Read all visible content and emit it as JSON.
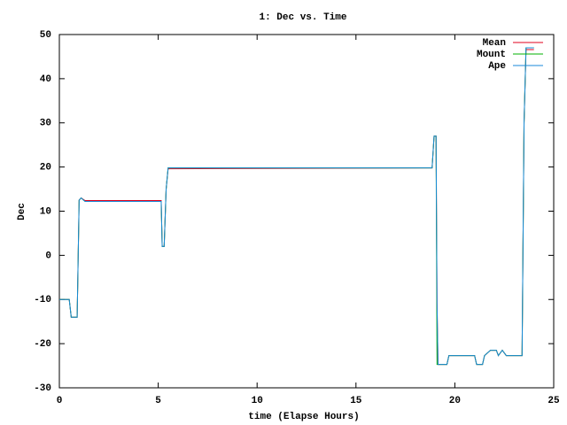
{
  "chart_data": {
    "type": "line",
    "title": "1: Dec vs. Time",
    "xlabel": "time (Elapse Hours)",
    "ylabel": "Dec",
    "x": [
      0,
      0.5,
      0.6,
      0.9,
      1.0,
      1.1,
      1.3,
      5.15,
      5.2,
      5.3,
      5.4,
      5.5,
      18.85,
      18.95,
      19.05,
      19.1,
      19.15,
      19.6,
      19.7,
      21.0,
      21.1,
      21.4,
      21.5,
      21.8,
      22.1,
      22.2,
      22.4,
      22.6,
      23.4,
      23.5,
      23.6,
      24.0
    ],
    "series": [
      {
        "name": "Mean",
        "color": "#e0001c",
        "values": [
          -10,
          -10,
          -14,
          -14,
          12.5,
          13,
          12.4,
          12.4,
          2,
          2,
          15,
          19.6,
          19.8,
          27,
          27,
          -11,
          -24.7,
          -24.7,
          -22.7,
          -22.7,
          -24.7,
          -24.7,
          -22.7,
          -21.5,
          -21.5,
          -22.7,
          -21.5,
          -22.7,
          -22.7,
          30,
          46.6,
          46.6
        ]
      },
      {
        "name": "Mount",
        "color": "#00b000",
        "values": [
          -10,
          -10,
          -14,
          -14,
          12.5,
          13,
          12.2,
          12.2,
          2,
          2,
          15,
          19.8,
          19.8,
          27,
          27,
          -24.7,
          -24.7,
          -24.7,
          -22.7,
          -22.7,
          -24.7,
          -24.7,
          -22.7,
          -21.5,
          -21.5,
          -22.7,
          -21.5,
          -22.7,
          -22.7,
          30,
          47,
          47
        ]
      },
      {
        "name": "Ape",
        "color": "#1a8ad8",
        "values": [
          -10,
          -10,
          -14,
          -14,
          12.5,
          13,
          12.2,
          12.2,
          2,
          2,
          15,
          19.8,
          19.8,
          27,
          27,
          -11,
          -24.7,
          -24.7,
          -22.7,
          -22.7,
          -24.7,
          -24.7,
          -22.7,
          -21.5,
          -21.5,
          -22.7,
          -21.5,
          -22.7,
          -22.7,
          30,
          47,
          47
        ]
      }
    ],
    "xlim": [
      0,
      25
    ],
    "xticks": [
      0,
      5,
      10,
      15,
      20,
      25
    ],
    "ylim": [
      -30,
      50
    ],
    "yticks": [
      -30,
      -20,
      -10,
      0,
      10,
      20,
      30,
      40,
      50
    ],
    "grid": false,
    "legend": "top-right"
  }
}
